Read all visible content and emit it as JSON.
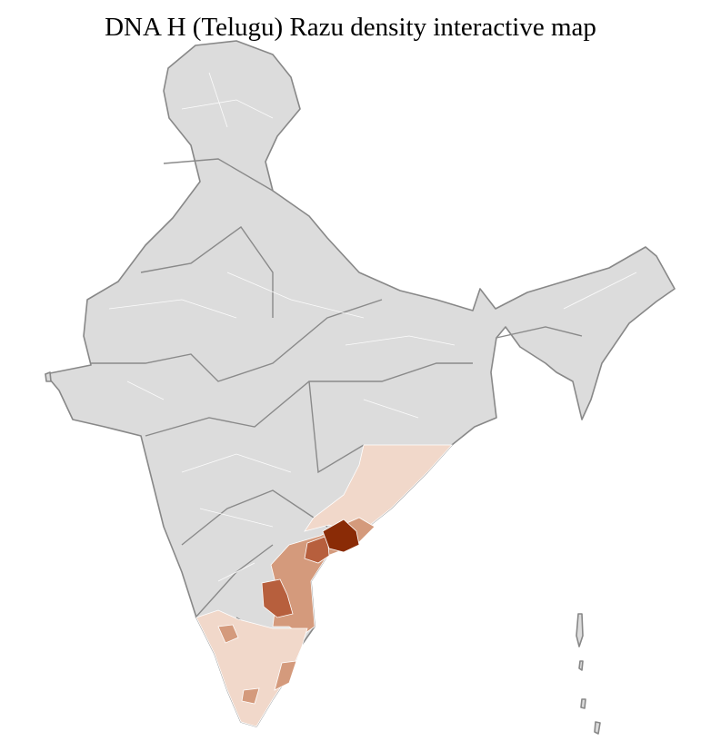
{
  "title": "DNA H (Telugu) Razu density interactive map",
  "colors": {
    "no_data": "#dcdcdc",
    "density_low": "#f1d8ca",
    "density_medium": "#d49a7c",
    "density_high": "#b75f3d",
    "density_highest": "#8a2b06"
  }
}
